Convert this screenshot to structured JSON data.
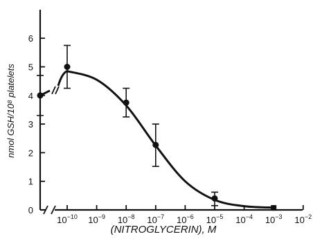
{
  "chart_data": {
    "type": "scatter",
    "xlabel": "(NITROGLYCERIN), M",
    "ylabel": "nmol GSH/10⁸ platelets",
    "xscale": "log",
    "x_tick_exponents": [
      -10,
      -9,
      -8,
      -7,
      -6,
      -5,
      -4,
      -3,
      -2
    ],
    "x_tick_base": "10",
    "y_ticks": [
      0,
      1,
      2,
      3,
      4,
      5,
      6
    ],
    "ylim": [
      0,
      6.7
    ],
    "axis_break": true,
    "grid": false,
    "legend": "none",
    "points": [
      {
        "x": "0",
        "y": 4.0,
        "yerr_low": 3.3,
        "yerr_high": 4.7,
        "marker": "circle"
      },
      {
        "x": 1e-10,
        "y": 5.0,
        "yerr_low": 4.25,
        "yerr_high": 5.75,
        "marker": "circle"
      },
      {
        "x": 1e-08,
        "y": 3.75,
        "yerr_low": 3.25,
        "yerr_high": 4.25,
        "marker": "circle"
      },
      {
        "x": 1e-07,
        "y": 2.27,
        "yerr_low": 1.52,
        "yerr_high": 3.0,
        "marker": "circle"
      },
      {
        "x": 1e-05,
        "y": 0.4,
        "yerr_low": 0.15,
        "yerr_high": 0.62,
        "marker": "circle"
      },
      {
        "x": 0.001,
        "y": 0.07,
        "yerr_low": 0.07,
        "yerr_high": 0.07,
        "marker": "square"
      }
    ],
    "fit_curve": [
      {
        "x": 1e-10,
        "y": 4.85
      },
      {
        "x": 1e-09,
        "y": 4.55
      },
      {
        "x": 1e-08,
        "y": 3.65
      },
      {
        "x": 1e-07,
        "y": 2.25
      },
      {
        "x": 1e-06,
        "y": 1.0
      },
      {
        "x": 1e-05,
        "y": 0.35
      },
      {
        "x": 0.0001,
        "y": 0.13
      },
      {
        "x": 0.001,
        "y": 0.08
      }
    ]
  }
}
